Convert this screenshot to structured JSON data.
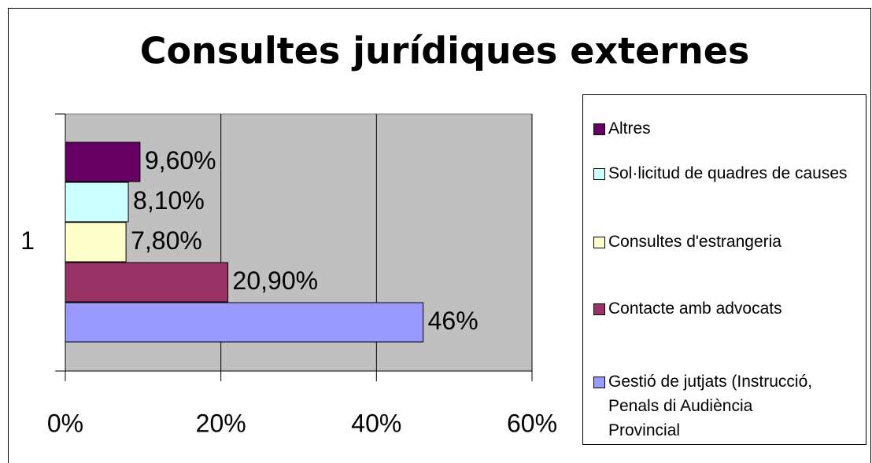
{
  "chart_data": {
    "type": "bar",
    "orientation": "horizontal",
    "title": "Consultes jurídiques externes",
    "categories": [
      "1"
    ],
    "series": [
      {
        "name": "Gestió de jutjats (Instrucció, Penals di Audiència Provincial",
        "color": "#9999ff",
        "values": [
          46
        ],
        "value_labels": [
          "46%"
        ]
      },
      {
        "name": "Contacte amb advocats",
        "color": "#993366",
        "values": [
          20.9
        ],
        "value_labels": [
          "20,90%"
        ]
      },
      {
        "name": "Consultes d'estrangeria",
        "color": "#ffffcc",
        "values": [
          7.8
        ],
        "value_labels": [
          "7,80%"
        ]
      },
      {
        "name": "Sol·licitud de quadres de causes",
        "color": "#ccffff",
        "values": [
          8.1
        ],
        "value_labels": [
          "8,10%"
        ]
      },
      {
        "name": "Altres",
        "color": "#660066",
        "values": [
          9.6
        ],
        "value_labels": [
          "9,60%"
        ]
      }
    ],
    "xlim": [
      0,
      60
    ],
    "xticks": [
      {
        "value": 0,
        "label": "0%"
      },
      {
        "value": 20,
        "label": "20%"
      },
      {
        "value": 40,
        "label": "40%"
      },
      {
        "value": 60,
        "label": "60%"
      }
    ],
    "grid": true,
    "plot_background": "#c0c0c0",
    "legend": "right"
  }
}
